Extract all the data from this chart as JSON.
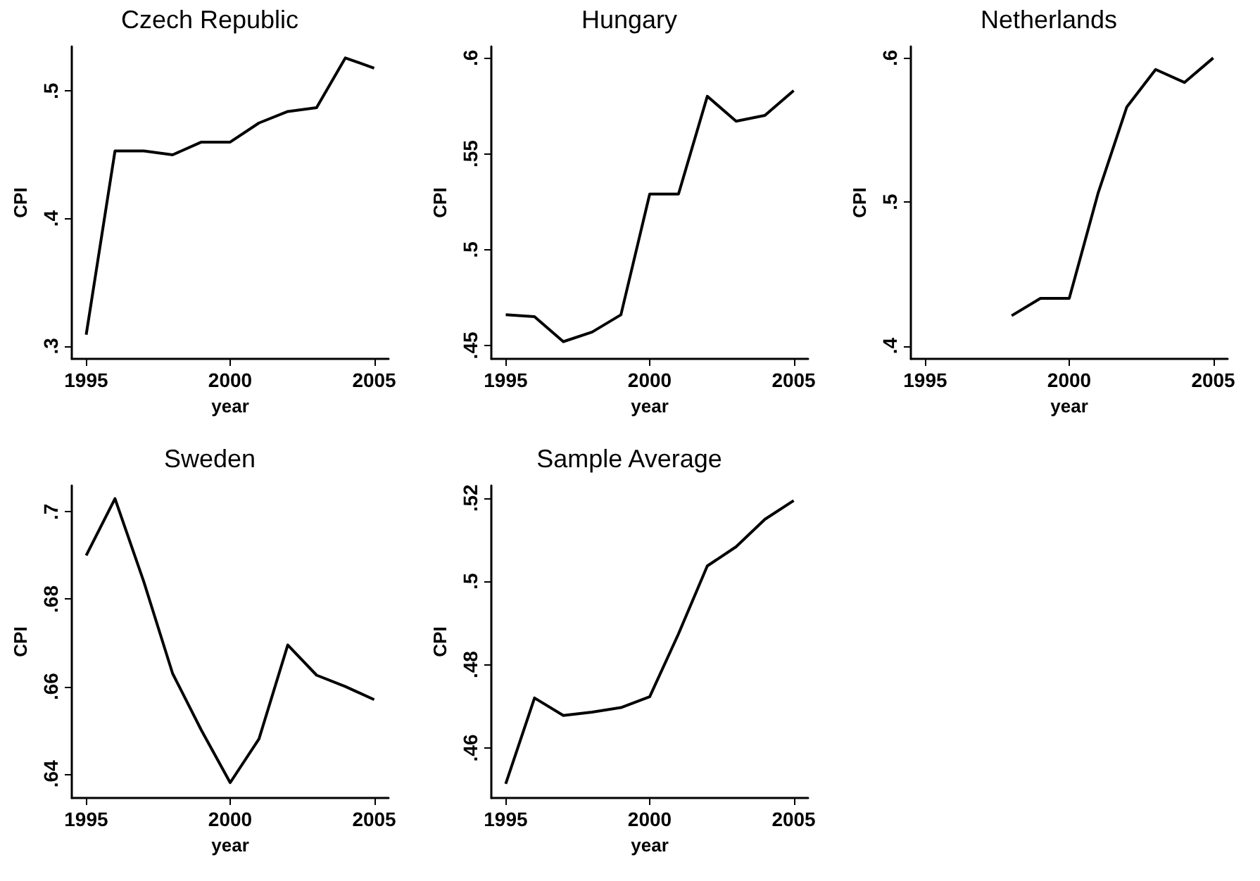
{
  "chart_data": [
    {
      "type": "line",
      "title": "Czech Republic",
      "xlabel": "year",
      "ylabel": "CPI",
      "color": "#000000",
      "x": [
        1995,
        1996,
        1997,
        1998,
        1999,
        2000,
        2001,
        2002,
        2003,
        2004,
        2005
      ],
      "values": [
        0.309,
        0.453,
        0.453,
        0.45,
        0.46,
        0.46,
        0.475,
        0.484,
        0.487,
        0.526,
        0.518
      ],
      "xlim": [
        1994.5,
        2005.5
      ],
      "xticks": [
        1995,
        2000,
        2005
      ],
      "ylim": [
        0.29,
        0.535
      ],
      "yticks": [
        {
          "value": 0.3,
          "label": ".3"
        },
        {
          "value": 0.4,
          "label": ".4"
        },
        {
          "value": 0.5,
          "label": ".5"
        }
      ]
    },
    {
      "type": "line",
      "title": "Hungary",
      "xlabel": "year",
      "ylabel": "CPI",
      "color": "#000000",
      "x": [
        1995,
        1996,
        1997,
        1998,
        1999,
        2000,
        2001,
        2002,
        2003,
        2004,
        2005
      ],
      "values": [
        0.466,
        0.465,
        0.452,
        0.457,
        0.466,
        0.529,
        0.529,
        0.58,
        0.567,
        0.57,
        0.583
      ],
      "xlim": [
        1994.5,
        2005.5
      ],
      "xticks": [
        1995,
        2000,
        2005
      ],
      "ylim": [
        0.443,
        0.606
      ],
      "yticks": [
        {
          "value": 0.45,
          "label": ".45"
        },
        {
          "value": 0.5,
          "label": ".5"
        },
        {
          "value": 0.55,
          "label": ".55"
        },
        {
          "value": 0.6,
          "label": ".6"
        }
      ]
    },
    {
      "type": "line",
      "title": "Netherlands",
      "xlabel": "year",
      "ylabel": "CPI",
      "color": "#000000",
      "x": [
        1998,
        1999,
        2000,
        2001,
        2002,
        2003,
        2004,
        2005
      ],
      "values": [
        0.421,
        0.433,
        0.433,
        0.506,
        0.566,
        0.592,
        0.583,
        0.6
      ],
      "xlim": [
        1994.5,
        2005.5
      ],
      "xticks": [
        1995,
        2000,
        2005
      ],
      "ylim": [
        0.391,
        0.608
      ],
      "yticks": [
        {
          "value": 0.4,
          "label": ".4"
        },
        {
          "value": 0.5,
          "label": ".5"
        },
        {
          "value": 0.6,
          "label": ".6"
        }
      ]
    },
    {
      "type": "line",
      "title": "Sweden",
      "xlabel": "year",
      "ylabel": "CPI",
      "color": "#000000",
      "x": [
        1995,
        1996,
        1997,
        1998,
        1999,
        2000,
        2001,
        2002,
        2003,
        2004,
        2005
      ],
      "values": [
        0.69,
        0.703,
        0.684,
        0.663,
        0.65,
        0.638,
        0.648,
        0.6695,
        0.6626,
        0.66,
        0.657
      ],
      "xlim": [
        1994.5,
        2005.5
      ],
      "xticks": [
        1995,
        2000,
        2005
      ],
      "ylim": [
        0.6345,
        0.706
      ],
      "yticks": [
        {
          "value": 0.64,
          "label": ".64"
        },
        {
          "value": 0.66,
          "label": ".66"
        },
        {
          "value": 0.68,
          "label": ".68"
        },
        {
          "value": 0.7,
          "label": ".7"
        }
      ]
    },
    {
      "type": "line",
      "title": "Sample Average",
      "xlabel": "year",
      "ylabel": "CPI",
      "color": "#000000",
      "x": [
        1995,
        1996,
        1997,
        1998,
        1999,
        2000,
        2001,
        2002,
        2003,
        2004,
        2005
      ],
      "values": [
        0.4514,
        0.472,
        0.4678,
        0.4686,
        0.4697,
        0.4723,
        0.4874,
        0.5037,
        0.5083,
        0.5149,
        0.5194
      ],
      "xlim": [
        1994.5,
        2005.5
      ],
      "xticks": [
        1995,
        2000,
        2005
      ],
      "ylim": [
        0.448,
        0.523
      ],
      "yticks": [
        {
          "value": 0.46,
          "label": ".46"
        },
        {
          "value": 0.48,
          "label": ".48"
        },
        {
          "value": 0.5,
          "label": ".5"
        },
        {
          "value": 0.52,
          "label": ".52"
        }
      ]
    }
  ]
}
